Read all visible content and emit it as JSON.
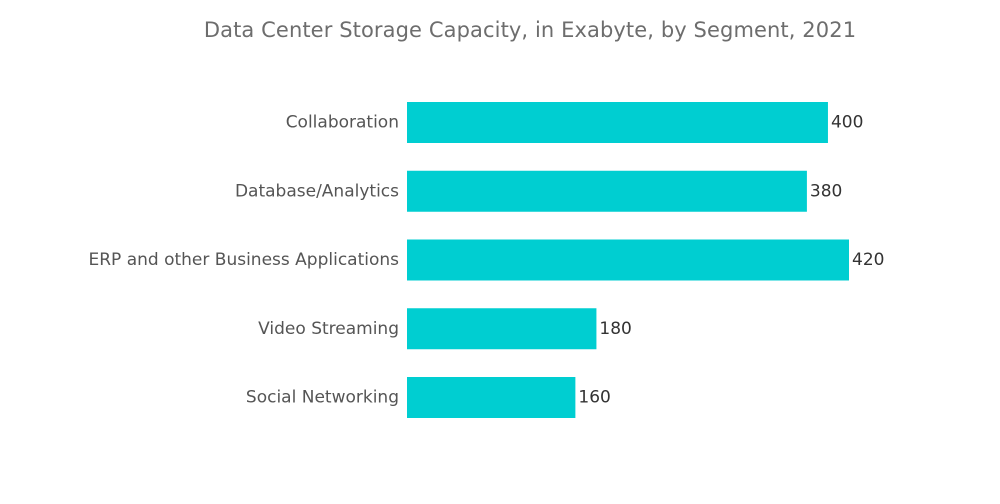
{
  "chart_data": {
    "type": "bar",
    "orientation": "horizontal",
    "title": "Data Center Storage Capacity, in Exabyte, by Segment, 2021",
    "categories": [
      "Collaboration",
      "Database/Analytics",
      "ERP and other Business Applications",
      "Video Streaming",
      "Social Networking"
    ],
    "values": [
      400,
      380,
      420,
      180,
      160
    ],
    "value_labels": [
      "400",
      "380",
      "420",
      "180",
      "160"
    ],
    "xlabel": "",
    "ylabel": "",
    "xlim": [
      0,
      420
    ],
    "grid": false,
    "legend": "none",
    "bar_color": "#00CED1"
  }
}
